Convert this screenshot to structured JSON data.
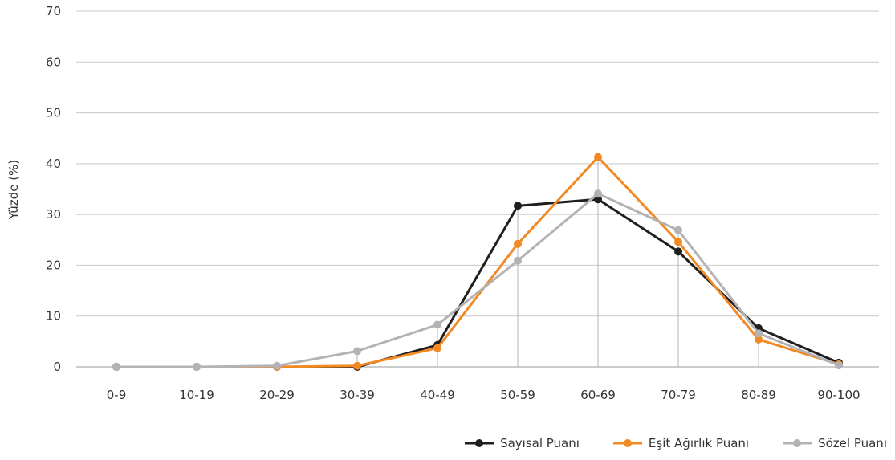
{
  "chart_data": {
    "type": "line",
    "ylabel": "Yüzde (%)",
    "xlabel": "",
    "categories": [
      "0-9",
      "10-19",
      "20-29",
      "30-39",
      "40-49",
      "50-59",
      "60-69",
      "70-79",
      "80-89",
      "90-100"
    ],
    "ylim": [
      0,
      70
    ],
    "yticks": [
      0,
      10,
      20,
      30,
      40,
      50,
      60,
      70
    ],
    "grid": "horizontal",
    "legend_position": "bottom-right",
    "series": [
      {
        "name": "Sayısal Puanı",
        "color": "#1f1f1f",
        "values": [
          0,
          0,
          0,
          0,
          4.3,
          31.7,
          33.0,
          22.7,
          7.6,
          0.8
        ]
      },
      {
        "name": "Eşit Ağırlık Puanı",
        "color": "#f28a24",
        "values": [
          0,
          0,
          0,
          0.2,
          3.7,
          24.2,
          41.3,
          24.6,
          5.4,
          0.5
        ]
      },
      {
        "name": "Sözel Puanı",
        "color": "#b3b3b5",
        "values": [
          0,
          0,
          0.2,
          3.1,
          8.3,
          20.9,
          34.1,
          26.9,
          6.6,
          0.3
        ]
      }
    ]
  }
}
